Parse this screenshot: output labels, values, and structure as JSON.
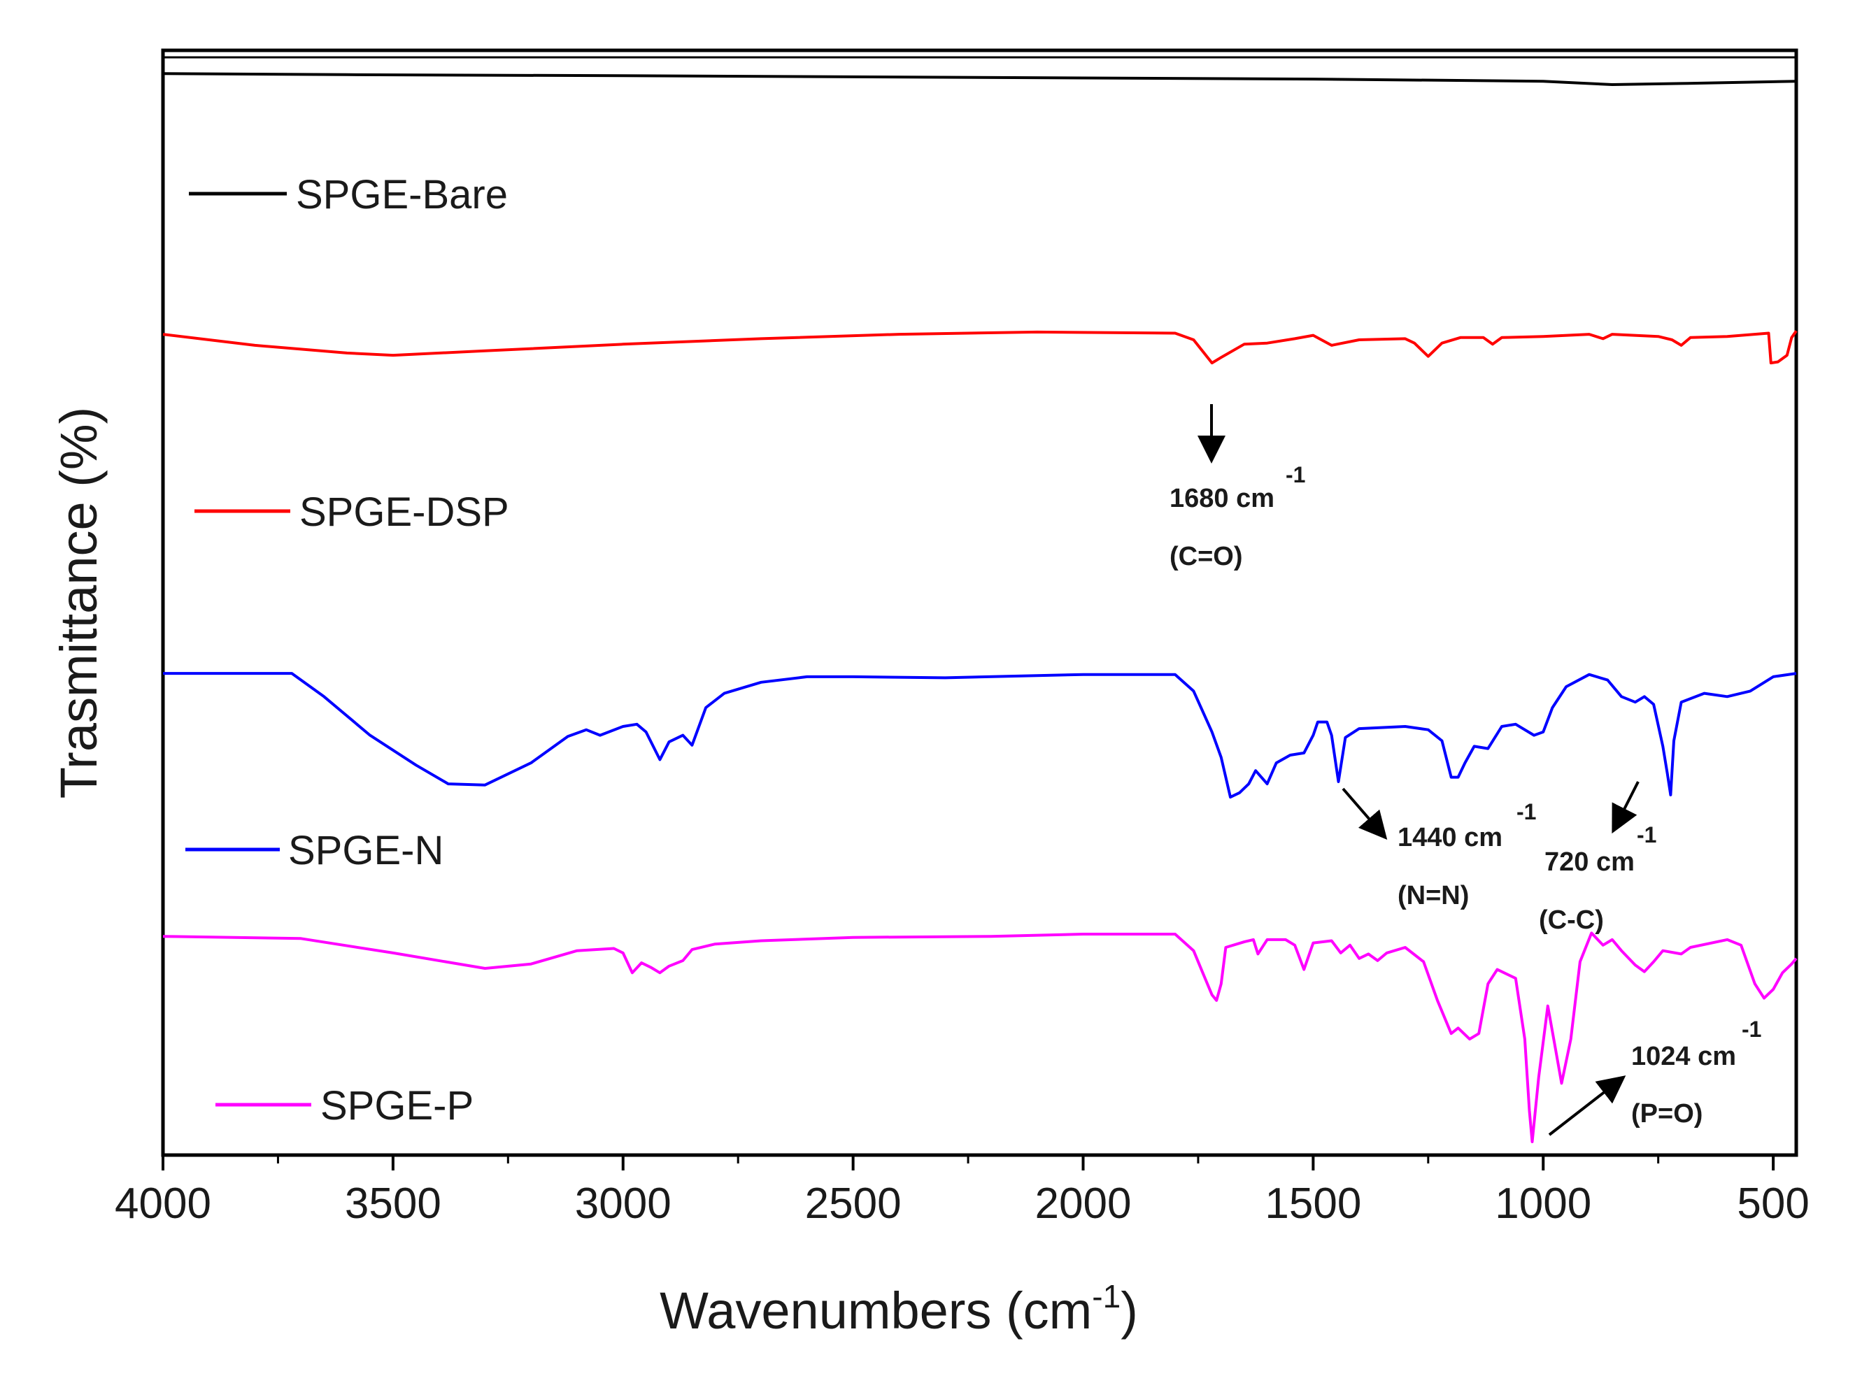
{
  "chart_data": {
    "type": "line",
    "title": "",
    "xlabel": "Wavenumbers (cm",
    "xlabel_sup": "-1",
    "xlabel_close": ")",
    "ylabel": "Trasmittance (%)",
    "xlim": [
      4000,
      450
    ],
    "ylim": [
      0,
      100
    ],
    "x_reversed": true,
    "x_ticks": [
      4000,
      3500,
      3000,
      2500,
      2000,
      1500,
      1000,
      500
    ],
    "y_ticks_shown": false,
    "legend_position": "left, beside each curve",
    "series": [
      {
        "name": "SPGE-Bare",
        "color": "#000000",
        "points": [
          [
            4000,
            97.9
          ],
          [
            3600,
            97.8
          ],
          [
            3000,
            97.7
          ],
          [
            2500,
            97.6
          ],
          [
            2000,
            97.5
          ],
          [
            1500,
            97.4
          ],
          [
            1000,
            97.2
          ],
          [
            850,
            96.9
          ],
          [
            700,
            97.0
          ],
          [
            450,
            97.2
          ]
        ]
      },
      {
        "name": "SPGE-DSP",
        "color": "#ff0000",
        "points": [
          [
            4000,
            74.3
          ],
          [
            3800,
            73.3
          ],
          [
            3600,
            72.6
          ],
          [
            3500,
            72.4
          ],
          [
            3300,
            72.8
          ],
          [
            3000,
            73.4
          ],
          [
            2700,
            73.9
          ],
          [
            2400,
            74.3
          ],
          [
            2100,
            74.5
          ],
          [
            1800,
            74.4
          ],
          [
            1760,
            73.8
          ],
          [
            1720,
            71.7
          ],
          [
            1700,
            72.2
          ],
          [
            1650,
            73.4
          ],
          [
            1600,
            73.5
          ],
          [
            1540,
            73.9
          ],
          [
            1500,
            74.2
          ],
          [
            1460,
            73.3
          ],
          [
            1400,
            73.8
          ],
          [
            1300,
            73.9
          ],
          [
            1280,
            73.5
          ],
          [
            1250,
            72.3
          ],
          [
            1220,
            73.5
          ],
          [
            1180,
            74.0
          ],
          [
            1130,
            74.0
          ],
          [
            1110,
            73.4
          ],
          [
            1090,
            74.0
          ],
          [
            1000,
            74.1
          ],
          [
            900,
            74.3
          ],
          [
            870,
            73.9
          ],
          [
            850,
            74.3
          ],
          [
            750,
            74.1
          ],
          [
            720,
            73.8
          ],
          [
            700,
            73.3
          ],
          [
            680,
            74.0
          ],
          [
            600,
            74.1
          ],
          [
            510,
            74.4
          ],
          [
            505,
            71.7
          ],
          [
            490,
            71.8
          ],
          [
            470,
            72.4
          ],
          [
            460,
            74.0
          ],
          [
            450,
            74.6
          ]
        ]
      },
      {
        "name": "SPGE-N",
        "color": "#0000ff",
        "points": [
          [
            4000,
            43.6
          ],
          [
            3720,
            43.6
          ],
          [
            3650,
            41.5
          ],
          [
            3550,
            38.0
          ],
          [
            3450,
            35.3
          ],
          [
            3380,
            33.6
          ],
          [
            3300,
            33.5
          ],
          [
            3200,
            35.5
          ],
          [
            3120,
            37.9
          ],
          [
            3080,
            38.5
          ],
          [
            3050,
            38.0
          ],
          [
            3000,
            38.8
          ],
          [
            2970,
            39.0
          ],
          [
            2950,
            38.3
          ],
          [
            2920,
            35.8
          ],
          [
            2900,
            37.4
          ],
          [
            2870,
            38.0
          ],
          [
            2850,
            37.1
          ],
          [
            2820,
            40.5
          ],
          [
            2780,
            41.8
          ],
          [
            2700,
            42.8
          ],
          [
            2600,
            43.3
          ],
          [
            2500,
            43.3
          ],
          [
            2300,
            43.2
          ],
          [
            2000,
            43.5
          ],
          [
            1800,
            43.5
          ],
          [
            1760,
            42.0
          ],
          [
            1720,
            38.3
          ],
          [
            1700,
            36.0
          ],
          [
            1680,
            32.4
          ],
          [
            1660,
            32.8
          ],
          [
            1640,
            33.6
          ],
          [
            1625,
            34.8
          ],
          [
            1600,
            33.6
          ],
          [
            1580,
            35.5
          ],
          [
            1550,
            36.2
          ],
          [
            1520,
            36.4
          ],
          [
            1500,
            38.0
          ],
          [
            1490,
            39.2
          ],
          [
            1470,
            39.2
          ],
          [
            1460,
            38.0
          ],
          [
            1445,
            33.8
          ],
          [
            1430,
            37.8
          ],
          [
            1400,
            38.6
          ],
          [
            1300,
            38.8
          ],
          [
            1250,
            38.5
          ],
          [
            1220,
            37.5
          ],
          [
            1200,
            34.2
          ],
          [
            1185,
            34.2
          ],
          [
            1170,
            35.5
          ],
          [
            1150,
            37.0
          ],
          [
            1120,
            36.8
          ],
          [
            1090,
            38.8
          ],
          [
            1060,
            39.0
          ],
          [
            1020,
            38.0
          ],
          [
            1000,
            38.3
          ],
          [
            980,
            40.5
          ],
          [
            950,
            42.4
          ],
          [
            900,
            43.5
          ],
          [
            860,
            43.0
          ],
          [
            830,
            41.5
          ],
          [
            800,
            41.0
          ],
          [
            780,
            41.5
          ],
          [
            760,
            40.8
          ],
          [
            740,
            37.0
          ],
          [
            730,
            34.5
          ],
          [
            723,
            32.6
          ],
          [
            716,
            37.5
          ],
          [
            700,
            41.0
          ],
          [
            650,
            41.8
          ],
          [
            600,
            41.5
          ],
          [
            550,
            42.0
          ],
          [
            500,
            43.3
          ],
          [
            450,
            43.6
          ]
        ]
      },
      {
        "name": "SPGE-P",
        "color": "#ff00ff",
        "points": [
          [
            4000,
            19.8
          ],
          [
            3700,
            19.6
          ],
          [
            3500,
            18.3
          ],
          [
            3300,
            16.9
          ],
          [
            3200,
            17.3
          ],
          [
            3100,
            18.5
          ],
          [
            3020,
            18.7
          ],
          [
            3000,
            18.3
          ],
          [
            2980,
            16.5
          ],
          [
            2960,
            17.4
          ],
          [
            2940,
            17.0
          ],
          [
            2920,
            16.5
          ],
          [
            2900,
            17.1
          ],
          [
            2870,
            17.6
          ],
          [
            2850,
            18.6
          ],
          [
            2800,
            19.1
          ],
          [
            2700,
            19.4
          ],
          [
            2500,
            19.7
          ],
          [
            2200,
            19.8
          ],
          [
            2000,
            20.0
          ],
          [
            1800,
            20.0
          ],
          [
            1760,
            18.5
          ],
          [
            1740,
            16.5
          ],
          [
            1720,
            14.5
          ],
          [
            1710,
            14.0
          ],
          [
            1700,
            15.5
          ],
          [
            1690,
            18.8
          ],
          [
            1650,
            19.3
          ],
          [
            1630,
            19.5
          ],
          [
            1620,
            18.2
          ],
          [
            1600,
            19.5
          ],
          [
            1560,
            19.5
          ],
          [
            1540,
            19.0
          ],
          [
            1520,
            16.8
          ],
          [
            1500,
            19.2
          ],
          [
            1460,
            19.4
          ],
          [
            1440,
            18.3
          ],
          [
            1420,
            19.0
          ],
          [
            1400,
            17.8
          ],
          [
            1380,
            18.2
          ],
          [
            1360,
            17.6
          ],
          [
            1340,
            18.3
          ],
          [
            1300,
            18.8
          ],
          [
            1260,
            17.5
          ],
          [
            1230,
            14.0
          ],
          [
            1200,
            11.0
          ],
          [
            1185,
            11.5
          ],
          [
            1160,
            10.5
          ],
          [
            1140,
            11.0
          ],
          [
            1120,
            15.5
          ],
          [
            1100,
            16.8
          ],
          [
            1060,
            16.0
          ],
          [
            1040,
            10.5
          ],
          [
            1030,
            4.0
          ],
          [
            1024,
            1.2
          ],
          [
            1010,
            7.0
          ],
          [
            990,
            13.5
          ],
          [
            975,
            10.0
          ],
          [
            960,
            6.5
          ],
          [
            940,
            10.5
          ],
          [
            920,
            17.5
          ],
          [
            895,
            20.1
          ],
          [
            870,
            19.0
          ],
          [
            850,
            19.5
          ],
          [
            830,
            18.5
          ],
          [
            800,
            17.2
          ],
          [
            780,
            16.6
          ],
          [
            760,
            17.5
          ],
          [
            740,
            18.5
          ],
          [
            700,
            18.2
          ],
          [
            680,
            18.8
          ],
          [
            600,
            19.5
          ],
          [
            570,
            19.0
          ],
          [
            540,
            15.5
          ],
          [
            520,
            14.2
          ],
          [
            500,
            15.0
          ],
          [
            480,
            16.5
          ],
          [
            460,
            17.3
          ],
          [
            450,
            17.8
          ]
        ]
      }
    ],
    "annotations": [
      {
        "value": "1680 cm",
        "sup": "-1",
        "group": "(C=O)"
      },
      {
        "value": "1440 cm",
        "sup": "-1",
        "group": "(N=N)"
      },
      {
        "value": "720 cm",
        "sup": "-1",
        "group": "(C-C)"
      },
      {
        "value": "1024 cm",
        "sup": "-1",
        "group": "(P=O)"
      }
    ]
  }
}
